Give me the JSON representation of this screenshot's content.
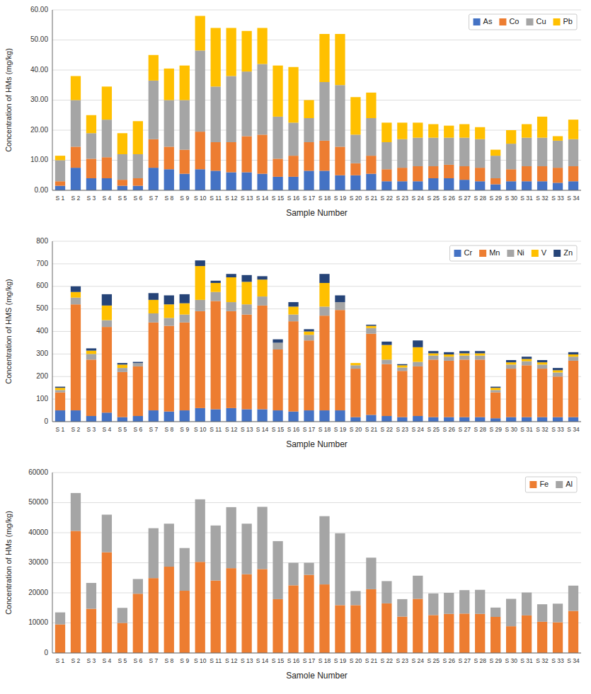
{
  "chart_data": [
    {
      "type": "bar",
      "stacked": true,
      "xlabel": "Sample Number",
      "ylabel": "Concentration of HMs (mg/kg)",
      "categories": [
        "S 1",
        "S 2",
        "S 3",
        "S 4",
        "S 5",
        "S 6",
        "S 7",
        "S 8",
        "S 9",
        "S 10",
        "S 11",
        "S 12",
        "S 13",
        "S 14",
        "S 15",
        "S 16",
        "S 17",
        "S 18",
        "S 19",
        "S 20",
        "S 21",
        "S 22",
        "S 23",
        "S 24",
        "S 25",
        "S 26",
        "S 27",
        "S 28",
        "S 29",
        "S 30",
        "S 31",
        "S 32",
        "S 33",
        "S 34"
      ],
      "series": [
        {
          "name": "As",
          "color": "#4472C4",
          "values": [
            1.5,
            7.5,
            4.0,
            4.0,
            1.5,
            1.5,
            7.5,
            7.0,
            5.5,
            7.0,
            6.5,
            6.0,
            6.0,
            5.5,
            4.5,
            4.5,
            6.5,
            6.5,
            5.0,
            5.0,
            5.5,
            3.0,
            3.0,
            3.0,
            4.0,
            4.0,
            3.5,
            3.0,
            2.0,
            3.0,
            3.0,
            3.0,
            2.5,
            3.0
          ]
        },
        {
          "name": "Co",
          "color": "#ED7D31",
          "values": [
            1.5,
            7.0,
            6.5,
            7.0,
            2.0,
            2.5,
            9.5,
            7.5,
            8.0,
            12.5,
            9.5,
            10.0,
            12.0,
            13.0,
            6.0,
            7.0,
            9.5,
            10.0,
            9.5,
            4.0,
            6.0,
            4.0,
            4.5,
            5.0,
            4.0,
            4.5,
            4.5,
            4.5,
            2.0,
            4.0,
            5.0,
            5.0,
            5.0,
            5.0
          ]
        },
        {
          "name": "Cu",
          "color": "#A5A5A5",
          "values": [
            7.0,
            15.5,
            8.5,
            12.5,
            8.5,
            8.0,
            19.5,
            15.5,
            16.5,
            27.0,
            18.5,
            22.0,
            21.5,
            23.5,
            14.0,
            11.0,
            8.0,
            19.5,
            20.5,
            9.5,
            12.5,
            9.0,
            9.5,
            9.5,
            9.5,
            9.0,
            9.5,
            9.5,
            7.5,
            8.5,
            9.5,
            9.5,
            9.0,
            9.0
          ]
        },
        {
          "name": "Pb",
          "color": "#FFC000",
          "values": [
            1.5,
            8.0,
            6.0,
            11.0,
            7.0,
            11.0,
            8.5,
            10.5,
            11.5,
            11.5,
            19.5,
            16.0,
            13.5,
            12.0,
            17.0,
            18.5,
            6.0,
            16.0,
            17.0,
            12.5,
            8.5,
            6.5,
            5.5,
            5.0,
            4.5,
            4.0,
            4.5,
            4.0,
            2.0,
            4.5,
            4.5,
            7.0,
            1.5,
            6.5
          ]
        }
      ],
      "ylim": [
        0,
        60
      ],
      "yticks": [
        {
          "value": 0,
          "label": "0.00"
        },
        {
          "value": 10,
          "label": "10.00"
        },
        {
          "value": 20,
          "label": "20.00"
        },
        {
          "value": 30,
          "label": "30.00"
        },
        {
          "value": 40,
          "label": "40.00"
        },
        {
          "value": 50,
          "label": "50.00"
        },
        {
          "value": 60,
          "label": "60.00"
        }
      ],
      "grid": true,
      "legend": "upper right"
    },
    {
      "type": "bar",
      "stacked": true,
      "xlabel": "Sample Number",
      "ylabel": "Concentration of HMS (mg/kg)",
      "categories": [
        "S 1",
        "S 2",
        "S 3",
        "S 4",
        "S 5",
        "S 6",
        "S 7",
        "S 8",
        "S 9",
        "S 10",
        "S 11",
        "S 12",
        "S 13",
        "S 14",
        "S 15",
        "S 16",
        "S 17",
        "S 18",
        "S 19",
        "S 20",
        "S 21",
        "S 22",
        "S 23",
        "S 24",
        "S 25",
        "S 26",
        "S 27",
        "S 28",
        "S 29",
        "S 30",
        "S 31",
        "S 32",
        "S 33",
        "S 34"
      ],
      "series": [
        {
          "name": "Cr",
          "color": "#4472C4",
          "values": [
            50,
            50,
            25,
            40,
            20,
            25,
            50,
            45,
            50,
            60,
            55,
            60,
            55,
            55,
            50,
            45,
            50,
            50,
            50,
            20,
            30,
            25,
            20,
            25,
            20,
            20,
            20,
            20,
            15,
            20,
            20,
            20,
            20,
            20
          ]
        },
        {
          "name": "Mn",
          "color": "#ED7D31",
          "values": [
            80,
            470,
            250,
            380,
            200,
            220,
            390,
            380,
            390,
            430,
            480,
            430,
            420,
            460,
            270,
            400,
            310,
            420,
            445,
            215,
            360,
            230,
            205,
            220,
            255,
            250,
            255,
            255,
            115,
            215,
            230,
            215,
            180,
            250
          ]
        },
        {
          "name": "Ni",
          "color": "#A5A5A5",
          "values": [
            10,
            30,
            25,
            30,
            18,
            15,
            40,
            35,
            35,
            50,
            40,
            40,
            45,
            40,
            30,
            30,
            25,
            40,
            35,
            15,
            25,
            20,
            15,
            20,
            18,
            18,
            18,
            18,
            10,
            18,
            18,
            18,
            18,
            18
          ]
        },
        {
          "name": "V",
          "color": "#FFC000",
          "values": [
            10,
            25,
            15,
            65,
            15,
            0,
            60,
            60,
            50,
            150,
            40,
            110,
            100,
            75,
            0,
            35,
            15,
            105,
            0,
            10,
            10,
            65,
            10,
            65,
            10,
            10,
            10,
            10,
            10,
            10,
            10,
            10,
            10,
            10
          ]
        },
        {
          "name": "Zn",
          "color": "#264478",
          "values": [
            5,
            25,
            10,
            50,
            7,
            5,
            30,
            40,
            40,
            25,
            10,
            15,
            30,
            15,
            15,
            20,
            10,
            40,
            30,
            0,
            5,
            15,
            5,
            30,
            10,
            10,
            10,
            10,
            5,
            10,
            10,
            10,
            10,
            10
          ]
        }
      ],
      "ylim": [
        0,
        800
      ],
      "yticks": [
        0,
        100,
        200,
        300,
        400,
        500,
        600,
        700,
        800
      ],
      "grid": true,
      "legend": "upper right"
    },
    {
      "type": "bar",
      "stacked": true,
      "xlabel": "Samole Number",
      "ylabel": "Concentration of HMs (mg/kg)",
      "categories": [
        "S 1",
        "S 2",
        "S 3",
        "S 4",
        "S 5",
        "S 6",
        "S 7",
        "S 8",
        "S 9",
        "S 10",
        "S 11",
        "S 12",
        "S 13",
        "S 14",
        "S 15",
        "S 16",
        "S 17",
        "S 18",
        "S 19",
        "S 20",
        "S 21",
        "S 22",
        "S 23",
        "S 24",
        "S 25",
        "S 26",
        "S 27",
        "S 28",
        "S 29",
        "S 30",
        "S 31",
        "S 32",
        "S 33",
        "S 34"
      ],
      "series": [
        {
          "name": "Fe",
          "color": "#ED7D31",
          "values": [
            9500,
            40600,
            14700,
            33500,
            10000,
            19700,
            24900,
            28700,
            20700,
            30300,
            24100,
            28200,
            26200,
            27900,
            17900,
            22500,
            26000,
            22800,
            15900,
            15900,
            21200,
            16500,
            12100,
            18000,
            12600,
            13000,
            13100,
            13000,
            12000,
            8900,
            12500,
            10400,
            10200,
            14000
          ]
        },
        {
          "name": "Al",
          "color": "#A5A5A5",
          "values": [
            4000,
            12600,
            8600,
            12500,
            5000,
            4900,
            16600,
            14300,
            14200,
            20800,
            18300,
            20300,
            16800,
            20700,
            19300,
            7500,
            4000,
            22700,
            23900,
            4700,
            10500,
            7400,
            5800,
            7700,
            7200,
            7000,
            7800,
            8000,
            3100,
            9100,
            7600,
            5800,
            6200,
            8400
          ]
        }
      ],
      "ylim": [
        0,
        60000
      ],
      "yticks": [
        0,
        10000,
        20000,
        30000,
        40000,
        50000,
        60000
      ],
      "grid": true,
      "legend": "upper right"
    }
  ]
}
